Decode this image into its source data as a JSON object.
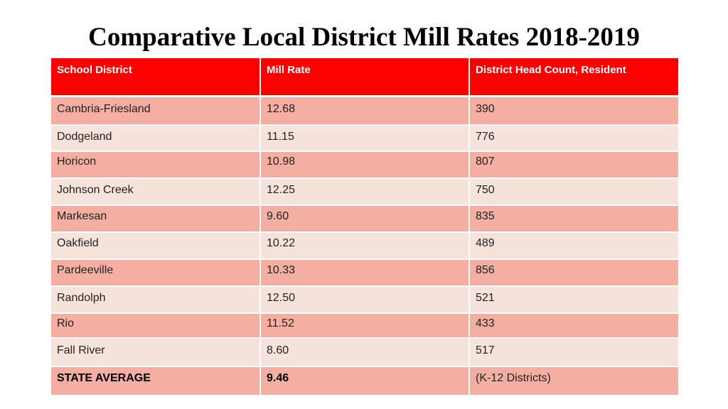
{
  "title": "Comparative Local District Mill Rates 2018-2019",
  "table": {
    "headers": [
      "School District",
      "Mill Rate",
      "District Head Count, Resident"
    ],
    "rows": [
      [
        "Cambria-Friesland",
        "12.68",
        "390"
      ],
      [
        "Dodgeland",
        "11.15",
        "776"
      ],
      [
        "Horicon",
        "10.98",
        "807"
      ],
      [
        "Johnson Creek",
        "12.25",
        "750"
      ],
      [
        "Markesan",
        "9.60",
        "835"
      ],
      [
        "Oakfield",
        "10.22",
        "489"
      ],
      [
        "Pardeeville",
        "10.33",
        "856"
      ],
      [
        "Randolph",
        "12.50",
        "521"
      ],
      [
        "Rio",
        "11.52",
        "433"
      ],
      [
        "Fall River",
        "8.60",
        "517"
      ]
    ],
    "state_average": [
      "STATE AVERAGE",
      "9.46",
      "(K-12 Districts)"
    ]
  },
  "colors": {
    "header_bg": "#ff0000",
    "row_dark": "#f4aea2",
    "row_light": "#f6e3dc"
  }
}
